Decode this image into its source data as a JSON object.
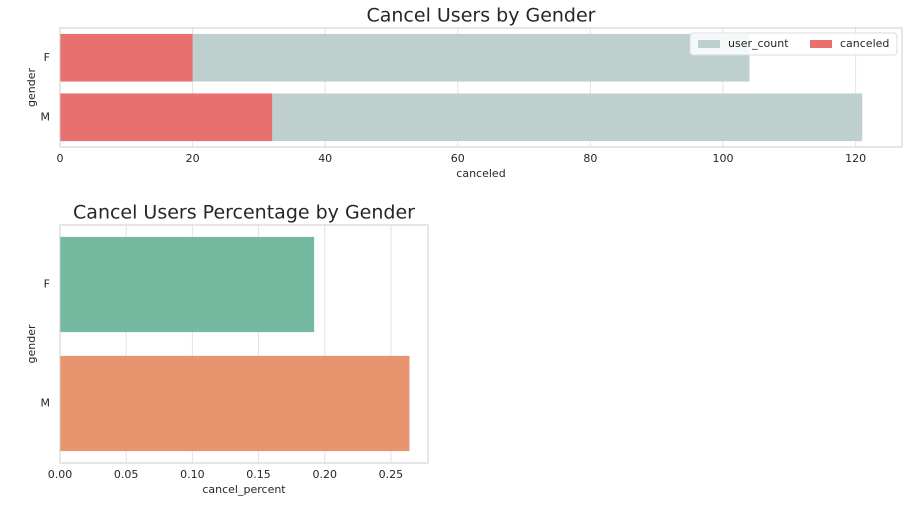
{
  "chart_data": [
    {
      "type": "barh",
      "title": "Cancel Users by Gender",
      "xlabel": "canceled",
      "ylabel": "gender",
      "categories": [
        "F",
        "M"
      ],
      "series": [
        {
          "name": "user_count",
          "color": "#bdd0ce",
          "values": [
            104,
            121
          ]
        },
        {
          "name": "canceled",
          "color": "#e87170",
          "values": [
            20,
            32
          ]
        }
      ],
      "xlim": [
        0,
        127
      ],
      "xticks": [
        0,
        20,
        40,
        60,
        80,
        100,
        120
      ],
      "grid": true,
      "legend": "upper right"
    },
    {
      "type": "barh",
      "title": "Cancel Users Percentage by Gender",
      "xlabel": "cancel_percent",
      "ylabel": "gender",
      "categories": [
        "F",
        "M"
      ],
      "values": [
        0.192,
        0.264
      ],
      "colors": [
        "#74b9a0",
        "#e8956f"
      ],
      "xlim": [
        0,
        0.278
      ],
      "xticks": [
        {
          "value": 0,
          "label": "0.00"
        },
        {
          "value": 0.05,
          "label": "0.05"
        },
        {
          "value": 0.1,
          "label": "0.10"
        },
        {
          "value": 0.15,
          "label": "0.15"
        },
        {
          "value": 0.2,
          "label": "0.20"
        },
        {
          "value": 0.25,
          "label": "0.25"
        }
      ],
      "grid": true
    }
  ]
}
